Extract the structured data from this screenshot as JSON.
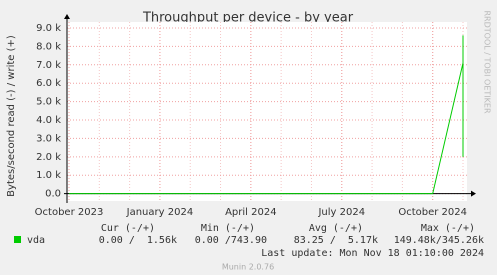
{
  "chart_data": {
    "type": "line",
    "title": "Throughput per device - by year",
    "y_label": "Bytes/second read (-) / write (+)",
    "side_label": "RRDTOOL / TOBI OETIKER",
    "x": [
      "2023-10",
      "2023-11",
      "2023-12",
      "2024-01",
      "2024-02",
      "2024-03",
      "2024-04",
      "2024-05",
      "2024-06",
      "2024-07",
      "2024-08",
      "2024-09",
      "2024-10",
      "2024-11",
      "2024-11",
      "2024-11",
      "2024-11",
      "2024-11"
    ],
    "series": [
      {
        "name": "vda",
        "color": "#00cc00",
        "values": [
          0,
          0,
          0,
          0,
          0,
          0,
          0,
          0,
          0,
          0,
          0,
          0,
          0,
          7100,
          2000,
          7800,
          8600,
          4000
        ]
      }
    ],
    "xlim": [
      "2023-10",
      "2024-11"
    ],
    "xticks": [
      {
        "value": "2023-10",
        "label": "October 2023"
      },
      {
        "value": "2024-01",
        "label": "January 2024"
      },
      {
        "value": "2024-04",
        "label": "April 2024"
      },
      {
        "value": "2024-07",
        "label": "July 2024"
      },
      {
        "value": "2024-10",
        "label": "October 2024"
      }
    ],
    "ylim": [
      -400,
      9000
    ],
    "yticks": [
      {
        "value": 0,
        "label": "0.0"
      },
      {
        "value": 1000,
        "label": "1.0 k"
      },
      {
        "value": 2000,
        "label": "2.0 k"
      },
      {
        "value": 3000,
        "label": "3.0 k"
      },
      {
        "value": 4000,
        "label": "4.0 k"
      },
      {
        "value": 5000,
        "label": "5.0 k"
      },
      {
        "value": 6000,
        "label": "6.0 k"
      },
      {
        "value": 7000,
        "label": "7.0 k"
      },
      {
        "value": 8000,
        "label": "8.0 k"
      },
      {
        "value": 9000,
        "label": "9.0 k"
      }
    ],
    "grid": true,
    "legend": {
      "columns": [
        "Cur (-/+)",
        "Min (-/+)",
        "Avg (-/+)",
        "Max (-/+)"
      ],
      "rows": [
        [
          "0.00 /  1.56k",
          "0.00 /743.90",
          "83.25 /  5.17k",
          "149.48k/345.26k"
        ]
      ]
    },
    "last_update": "Last update: Mon Nov 18 01:10:00 2024",
    "footer": "Munin 2.0.76"
  }
}
